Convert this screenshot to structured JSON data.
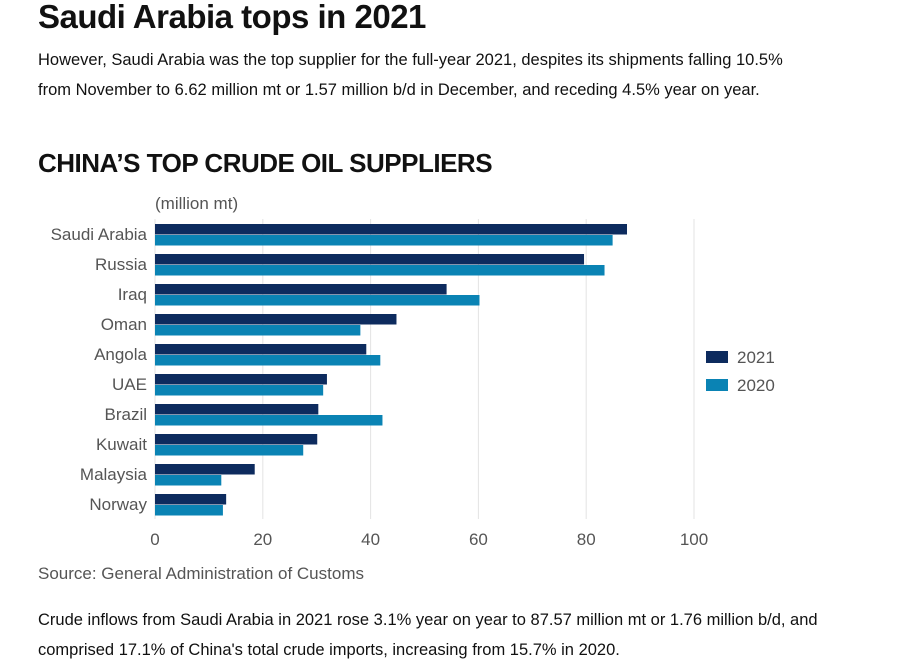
{
  "headline": "Saudi Arabia tops in 2021",
  "intro": "However, Saudi Arabia was the top supplier for the full-year 2021, despites its shipments falling 10.5% from November to 6.62 million mt or 1.57 million b/d in December, and receding 4.5% year on year.",
  "chart_data": {
    "type": "bar",
    "orientation": "horizontal",
    "title": "CHINA’S TOP CRUDE OIL SUPPLIERS",
    "unit_label": "(million mt)",
    "categories": [
      "Saudi Arabia",
      "Russia",
      "Iraq",
      "Oman",
      "Angola",
      "UAE",
      "Brazil",
      "Kuwait",
      "Malaysia",
      "Norway"
    ],
    "series": [
      {
        "name": "2021",
        "color": "#0d2b5e",
        "values": [
          87.57,
          79.6,
          54.1,
          44.8,
          39.2,
          31.9,
          30.3,
          30.1,
          18.5,
          13.2
        ]
      },
      {
        "name": "2020",
        "color": "#0a83b4",
        "values": [
          84.9,
          83.4,
          60.2,
          38.1,
          41.8,
          31.2,
          42.2,
          27.5,
          12.3,
          12.6
        ]
      }
    ],
    "xlim": [
      0,
      100
    ],
    "xticks": [
      0,
      20,
      40,
      60,
      80,
      100
    ],
    "grid": "vertical",
    "legend": "right"
  },
  "source": "Source: General Administration of Customs",
  "outro": "Crude inflows from Saudi Arabia in 2021 rose 3.1% year on year to 87.57 million mt or 1.76 million b/d, and comprised 17.1% of China's total crude imports, increasing from 15.7% in 2020."
}
